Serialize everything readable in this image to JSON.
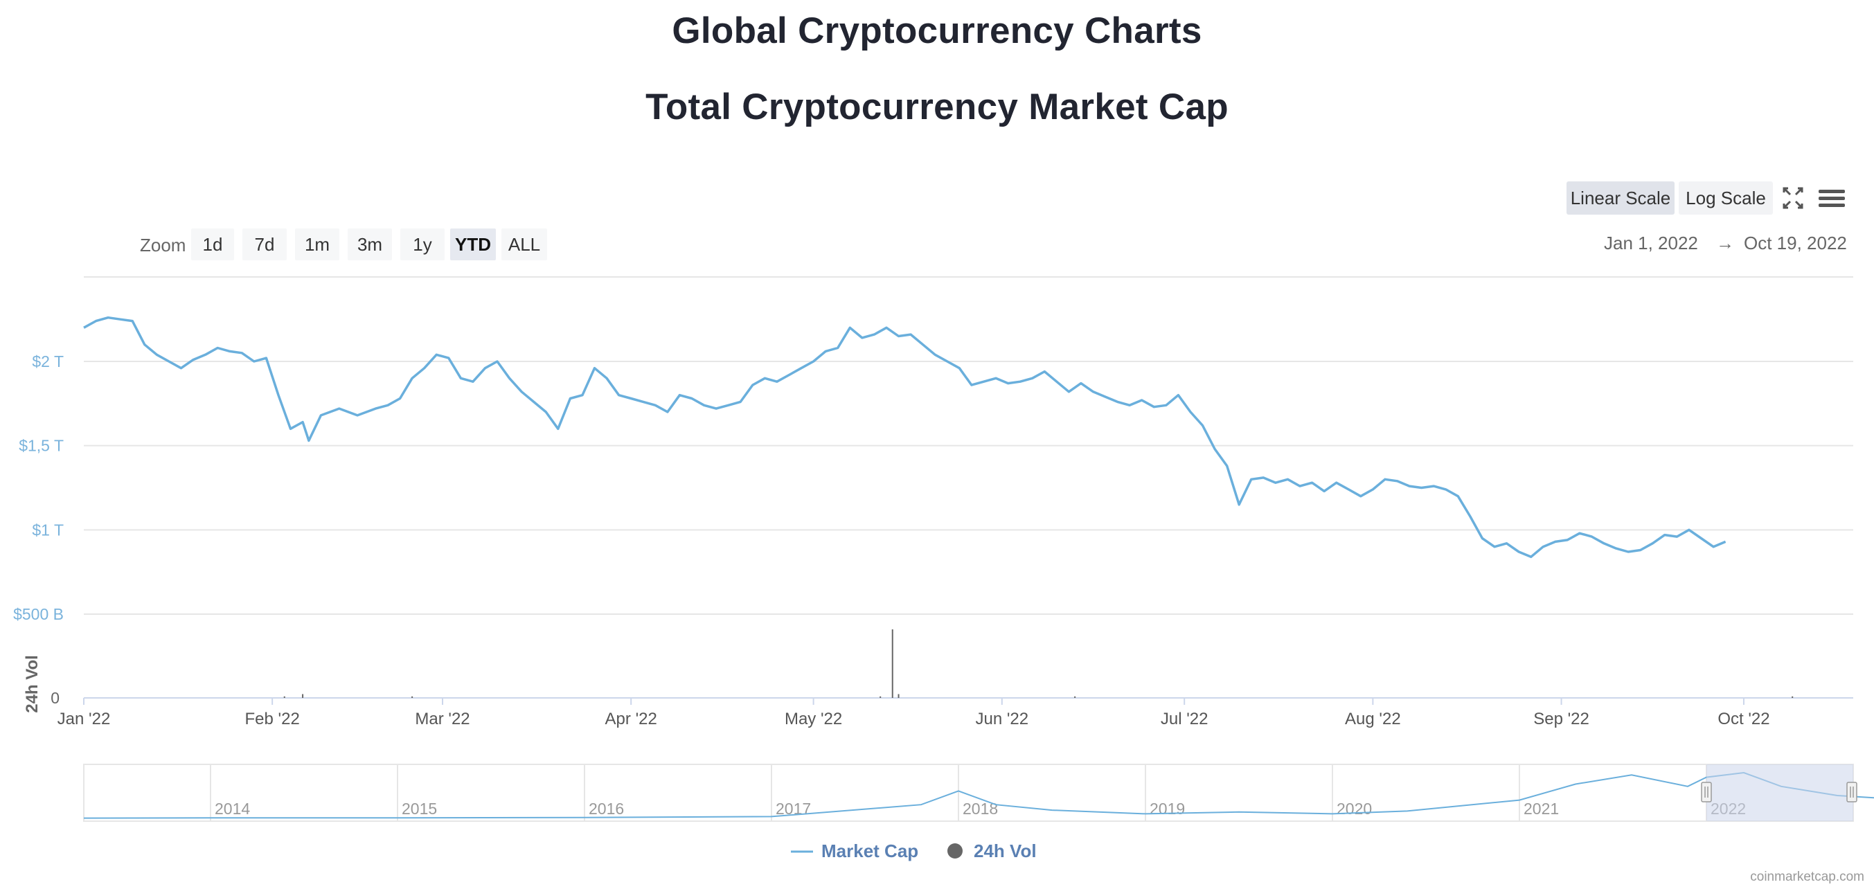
{
  "page": {
    "title": "Global Cryptocurrency Charts",
    "subtitle": "Total Cryptocurrency Market Cap",
    "credit": "coinmarketcap.com"
  },
  "toolbar": {
    "linear_scale": "Linear Scale",
    "log_scale": "Log Scale",
    "active_scale": "linear"
  },
  "zoom": {
    "label": "Zoom",
    "options": [
      "1d",
      "7d",
      "1m",
      "3m",
      "1y",
      "YTD",
      "ALL"
    ],
    "active": "YTD"
  },
  "range": {
    "from": "Jan 1, 2022",
    "arrow": "→",
    "to": "Oct 19, 2022"
  },
  "legend": {
    "market_cap": "Market Cap",
    "volume": "24h Vol"
  },
  "colors": {
    "market_cap": "#6aafdc",
    "volume": "#666666",
    "navigator_mask": "#ccd6eb"
  },
  "chart_data": {
    "type": "line",
    "ylabel_volume": "24h Vol",
    "y_ticks": [
      {
        "value": 2000,
        "label": "$2 T"
      },
      {
        "value": 1500,
        "label": "$1,5 T"
      },
      {
        "value": 1000,
        "label": "$1 T"
      },
      {
        "value": 500,
        "label": "$500 B"
      }
    ],
    "volume_ticks": [
      {
        "value": 0,
        "label": "0"
      }
    ],
    "ylim_billions": [
      500,
      2500
    ],
    "x_ticks": [
      {
        "day": 0,
        "label": "Jan '22"
      },
      {
        "day": 31,
        "label": "Feb '22"
      },
      {
        "day": 59,
        "label": "Mar '22"
      },
      {
        "day": 90,
        "label": "Apr '22"
      },
      {
        "day": 120,
        "label": "May '22"
      },
      {
        "day": 151,
        "label": "Jun '22"
      },
      {
        "day": 181,
        "label": "Jul '22"
      },
      {
        "day": 212,
        "label": "Aug '22"
      },
      {
        "day": 243,
        "label": "Sep '22"
      },
      {
        "day": 273,
        "label": "Oct '22"
      }
    ],
    "xlim_days": [
      0,
      291
    ],
    "series": [
      {
        "name": "Market Cap",
        "unit": "billions USD",
        "points": [
          [
            0,
            2200
          ],
          [
            2,
            2240
          ],
          [
            4,
            2260
          ],
          [
            6,
            2250
          ],
          [
            8,
            2240
          ],
          [
            10,
            2100
          ],
          [
            12,
            2040
          ],
          [
            14,
            2000
          ],
          [
            16,
            1960
          ],
          [
            18,
            2010
          ],
          [
            20,
            2040
          ],
          [
            22,
            2080
          ],
          [
            24,
            2060
          ],
          [
            26,
            2050
          ],
          [
            28,
            2000
          ],
          [
            30,
            2020
          ],
          [
            32,
            1800
          ],
          [
            34,
            1600
          ],
          [
            36,
            1640
          ],
          [
            37,
            1530
          ],
          [
            39,
            1680
          ],
          [
            42,
            1720
          ],
          [
            45,
            1680
          ],
          [
            48,
            1720
          ],
          [
            50,
            1740
          ],
          [
            52,
            1780
          ],
          [
            54,
            1900
          ],
          [
            56,
            1960
          ],
          [
            58,
            2040
          ],
          [
            60,
            2020
          ],
          [
            62,
            1900
          ],
          [
            64,
            1880
          ],
          [
            66,
            1960
          ],
          [
            68,
            2000
          ],
          [
            70,
            1900
          ],
          [
            72,
            1820
          ],
          [
            74,
            1760
          ],
          [
            76,
            1700
          ],
          [
            78,
            1600
          ],
          [
            80,
            1780
          ],
          [
            82,
            1800
          ],
          [
            84,
            1960
          ],
          [
            86,
            1900
          ],
          [
            88,
            1800
          ],
          [
            90,
            1780
          ],
          [
            92,
            1760
          ],
          [
            94,
            1740
          ],
          [
            96,
            1700
          ],
          [
            98,
            1800
          ],
          [
            100,
            1780
          ],
          [
            102,
            1740
          ],
          [
            104,
            1720
          ],
          [
            106,
            1740
          ],
          [
            108,
            1760
          ],
          [
            110,
            1860
          ],
          [
            112,
            1900
          ],
          [
            114,
            1880
          ],
          [
            116,
            1920
          ],
          [
            118,
            1960
          ],
          [
            120,
            2000
          ],
          [
            122,
            2060
          ],
          [
            124,
            2080
          ],
          [
            126,
            2200
          ],
          [
            128,
            2140
          ],
          [
            130,
            2160
          ],
          [
            132,
            2200
          ],
          [
            134,
            2150
          ],
          [
            136,
            2160
          ],
          [
            138,
            2100
          ],
          [
            140,
            2040
          ],
          [
            142,
            2000
          ],
          [
            144,
            1960
          ],
          [
            146,
            1860
          ],
          [
            148,
            1880
          ],
          [
            150,
            1900
          ],
          [
            152,
            1870
          ],
          [
            154,
            1880
          ],
          [
            156,
            1900
          ],
          [
            158,
            1940
          ],
          [
            160,
            1880
          ],
          [
            162,
            1820
          ],
          [
            164,
            1870
          ],
          [
            166,
            1820
          ],
          [
            168,
            1790
          ],
          [
            170,
            1760
          ],
          [
            172,
            1740
          ],
          [
            174,
            1770
          ],
          [
            176,
            1730
          ],
          [
            178,
            1740
          ],
          [
            180,
            1800
          ],
          [
            182,
            1700
          ],
          [
            184,
            1620
          ],
          [
            186,
            1480
          ],
          [
            188,
            1380
          ],
          [
            190,
            1150
          ],
          [
            192,
            1300
          ],
          [
            194,
            1310
          ],
          [
            196,
            1280
          ],
          [
            198,
            1300
          ],
          [
            200,
            1260
          ],
          [
            202,
            1280
          ],
          [
            204,
            1230
          ],
          [
            206,
            1280
          ],
          [
            208,
            1240
          ],
          [
            210,
            1200
          ],
          [
            212,
            1240
          ],
          [
            214,
            1300
          ],
          [
            216,
            1290
          ],
          [
            218,
            1260
          ],
          [
            220,
            1250
          ],
          [
            222,
            1260
          ],
          [
            224,
            1240
          ],
          [
            226,
            1200
          ],
          [
            228,
            1080
          ],
          [
            230,
            950
          ],
          [
            232,
            900
          ],
          [
            234,
            920
          ],
          [
            236,
            870
          ],
          [
            238,
            840
          ],
          [
            240,
            900
          ],
          [
            242,
            930
          ],
          [
            244,
            940
          ],
          [
            246,
            980
          ],
          [
            248,
            960
          ],
          [
            250,
            920
          ],
          [
            252,
            890
          ],
          [
            254,
            870
          ],
          [
            256,
            880
          ],
          [
            258,
            920
          ],
          [
            260,
            970
          ],
          [
            262,
            960
          ],
          [
            264,
            1000
          ],
          [
            266,
            950
          ],
          [
            268,
            900
          ],
          [
            270,
            930
          ]
        ]
      },
      {
        "name": "24h Vol",
        "unit": "relative",
        "points": [
          [
            33,
            0.02
          ],
          [
            36,
            0.05
          ],
          [
            54,
            0.02
          ],
          [
            131,
            0.02
          ],
          [
            133,
            0.9
          ],
          [
            134,
            0.05
          ],
          [
            163,
            0.02
          ],
          [
            281,
            0.02
          ]
        ]
      }
    ],
    "navigator": {
      "year_labels": [
        "2014",
        "2015",
        "2016",
        "2017",
        "2018",
        "2019",
        "2020",
        "2021",
        "2022"
      ],
      "series": [
        [
          0,
          0.01
        ],
        [
          1,
          0.01
        ],
        [
          2,
          0.02
        ],
        [
          3,
          0.04
        ],
        [
          3.8,
          0.3
        ],
        [
          4.0,
          0.6
        ],
        [
          4.2,
          0.3
        ],
        [
          4.5,
          0.18
        ],
        [
          5,
          0.1
        ],
        [
          5.5,
          0.14
        ],
        [
          6,
          0.1
        ],
        [
          6.4,
          0.16
        ],
        [
          7,
          0.4
        ],
        [
          7.3,
          0.75
        ],
        [
          7.6,
          0.95
        ],
        [
          7.9,
          0.7
        ],
        [
          8.0,
          0.9
        ],
        [
          8.2,
          1.0
        ],
        [
          8.4,
          0.7
        ],
        [
          8.7,
          0.5
        ],
        [
          8.9,
          0.45
        ]
      ]
    }
  }
}
